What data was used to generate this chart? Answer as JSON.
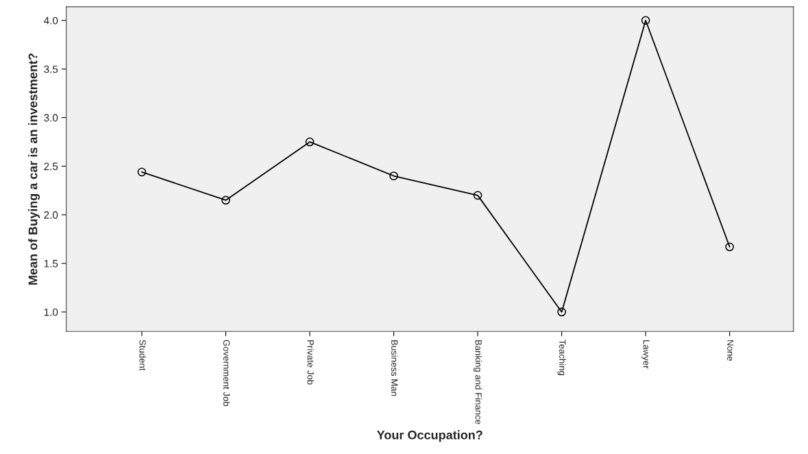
{
  "chart_data": {
    "type": "line",
    "xlabel": "Your Occupation?",
    "ylabel": "Mean of Buying a car is an investment?",
    "categories": [
      "Student",
      "Government Job",
      "Private Job",
      "Business Man",
      "Banking and Finance",
      "Teaching",
      "Lawyer",
      "None"
    ],
    "series": [
      {
        "color": "#000000",
        "values": [
          2.44,
          2.15,
          2.75,
          2.4,
          2.2,
          1.0,
          4.0,
          1.67
        ]
      }
    ],
    "ylim": [
      0.8,
      4.14
    ],
    "yticks": [
      {
        "value": 1.0,
        "label": "1.0"
      },
      {
        "value": 1.5,
        "label": "1.5"
      },
      {
        "value": 2.0,
        "label": "2.0"
      },
      {
        "value": 2.5,
        "label": "2.5"
      },
      {
        "value": 3.0,
        "label": "3.0"
      },
      {
        "value": 3.5,
        "label": "3.5"
      },
      {
        "value": 4.0,
        "label": "4.0"
      }
    ],
    "marker": "circle",
    "line_style": "solid",
    "grid": false,
    "legend": false
  }
}
